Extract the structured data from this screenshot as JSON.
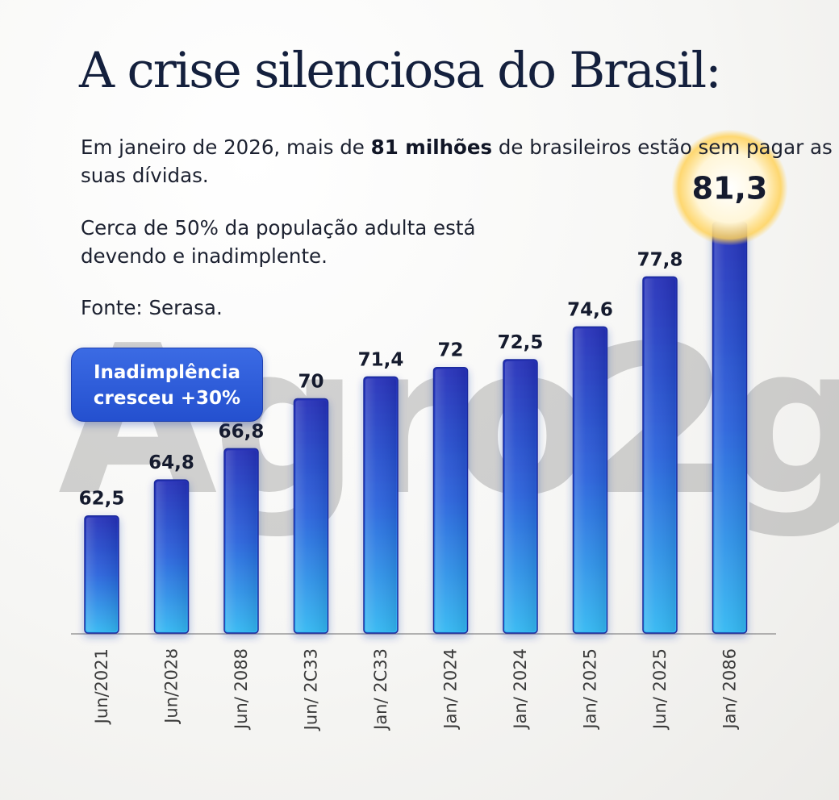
{
  "title": "A crise silenciosa do Brasil:",
  "paragraph1": {
    "before": "Em janeiro de 2026, mais de ",
    "bold": "81 milhões",
    "after": " de brasileiros estão sem pagar as suas dívidas."
  },
  "paragraph2": "Cerca de 50% da população adulta está devendo e inadimplente.",
  "source": "Fonte: Serasa.",
  "badge": {
    "line1": "Inadimplência",
    "line2": "cresceu +30%"
  },
  "watermark": "Agro2g",
  "colors": {
    "bar_top": "#2530b8",
    "bar_bottom": "#33b8f2",
    "badge": "#2f5cdb",
    "highlight_glow": "#ffd25a",
    "title": "#14203d"
  },
  "chart_data": {
    "type": "bar",
    "title": "A crise silenciosa do Brasil:",
    "categories": [
      "Jun/2021",
      "Jun/202ȣ",
      "Jun/ 2088",
      "Jun/ 2C33",
      "Jan/ 2C33",
      "Jan/ 2024",
      "Jan/ 2024",
      "Jan/ 2025",
      "Jun/ 2025",
      "Jan/ 2086"
    ],
    "values": [
      62.5,
      64.8,
      66.8,
      70,
      71.4,
      72,
      72.5,
      74.6,
      77.8,
      81.3
    ],
    "value_labels": [
      "62,5",
      "64,8",
      "66,8",
      "70",
      "71,4",
      "72",
      "72,5",
      "74,6",
      "77,8",
      "81,3"
    ],
    "highlight_index": 9,
    "ylim": [
      55,
      82
    ],
    "xlabel": "",
    "ylabel": "",
    "grid": false,
    "legend": "none"
  }
}
